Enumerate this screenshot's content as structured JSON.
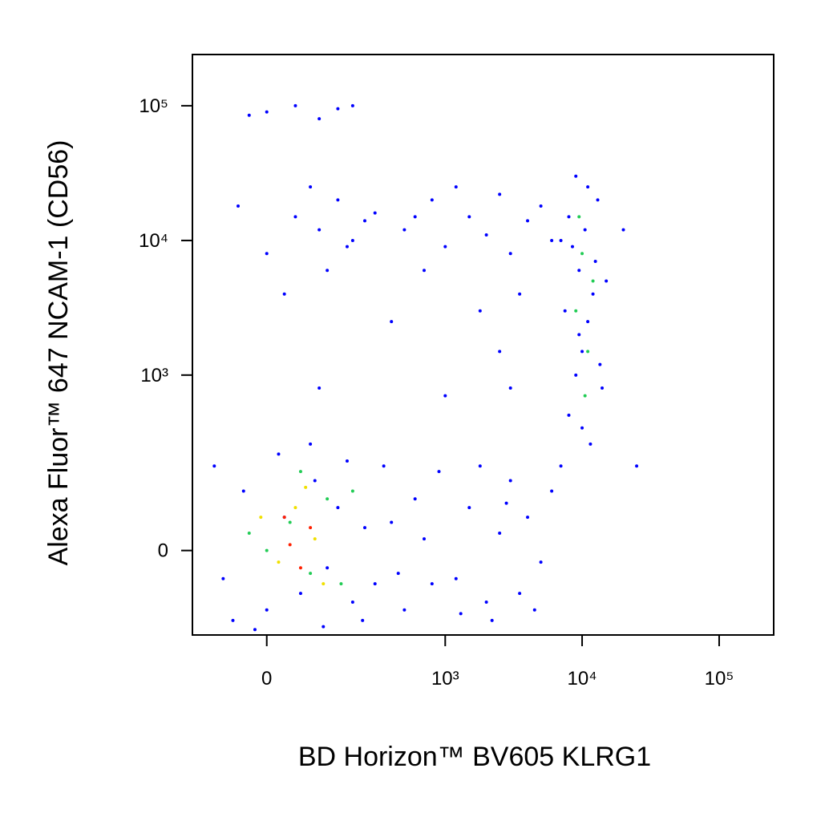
{
  "chart_data": {
    "type": "scatter",
    "xlabel": "BD Horizon™ BV605 KLRG1",
    "ylabel": "Alexa Fluor™ 647 NCAM-1 (CD56)",
    "xscale": "arcsinh",
    "yscale": "arcsinh",
    "xlim": [
      -160,
      250000
    ],
    "ylim": [
      -200,
      240000
    ],
    "xticks": [
      0,
      {
        "value": 1000,
        "label": "10³"
      },
      {
        "value": 10000,
        "label": "10⁴"
      },
      {
        "value": 100000,
        "label": "10⁵"
      }
    ],
    "yticks": [
      0,
      {
        "value": 1000,
        "label": "10³"
      },
      {
        "value": 10000,
        "label": "10⁴"
      },
      {
        "value": 100000,
        "label": "10⁵"
      }
    ],
    "series": [
      {
        "color": "#0000ff",
        "x": [
          -80,
          -40,
          0,
          30,
          60,
          90,
          120,
          150,
          200,
          250,
          -100,
          -60,
          20,
          80,
          180,
          300,
          400,
          500,
          600,
          350,
          -20,
          110,
          240,
          450,
          700,
          1200,
          1500,
          2000,
          2500,
          3000,
          3500,
          4000,
          5000,
          6000,
          1800,
          2200,
          2800,
          4500,
          800,
          900,
          1300,
          7000,
          8000,
          9000,
          10000,
          11000,
          12000,
          9500,
          8500,
          10500,
          13000,
          7500,
          14000,
          11500,
          9000,
          12500,
          8000,
          10000,
          15000,
          7000,
          11000,
          9500,
          13500,
          0,
          50,
          100,
          150,
          200,
          -50,
          120,
          250,
          80,
          30,
          180,
          300,
          500,
          800,
          1000,
          1500,
          2000,
          2500,
          3000,
          4000,
          5000,
          6000,
          700,
          1200,
          3500,
          1800,
          600,
          0,
          50,
          100,
          150,
          -30,
          200,
          100,
          400,
          2500,
          1000,
          3000,
          20000,
          25000
        ],
        "y": [
          -50,
          120,
          -120,
          60,
          -80,
          150,
          -30,
          80,
          -100,
          40,
          200,
          -150,
          250,
          300,
          220,
          -60,
          50,
          -120,
          100,
          200,
          -180,
          -170,
          -150,
          -40,
          20,
          -50,
          80,
          -100,
          30,
          150,
          -80,
          60,
          -20,
          120,
          200,
          -150,
          90,
          -120,
          -60,
          180,
          -130,
          200,
          500,
          1000,
          1500,
          2500,
          4000,
          6000,
          9000,
          12000,
          20000,
          3000,
          800,
          300,
          30000,
          7000,
          15000,
          400,
          5000,
          10000,
          25000,
          2000,
          1200,
          8000,
          15000,
          12000,
          20000,
          10000,
          18000,
          6000,
          14000,
          25000,
          4000,
          9000,
          16000,
          12000,
          20000,
          9000,
          15000,
          11000,
          22000,
          8000,
          14000,
          18000,
          10000,
          6000,
          25000,
          4000,
          3000,
          15000,
          90000,
          100000,
          80000,
          95000,
          85000,
          100000,
          800,
          2500,
          1500,
          700,
          800,
          12000,
          200
        ]
      },
      {
        "color": "#22cc55",
        "x": [
          0,
          40,
          80,
          120,
          -30,
          60,
          160,
          200,
          9000,
          10000,
          11000,
          9500,
          12000,
          10500
        ],
        "y": [
          0,
          50,
          -40,
          100,
          30,
          180,
          -60,
          120,
          3000,
          8000,
          1500,
          15000,
          5000,
          700
        ]
      },
      {
        "color": "#f0e000",
        "x": [
          20,
          50,
          90,
          110,
          -10,
          70
        ],
        "y": [
          -20,
          80,
          20,
          -60,
          60,
          130
        ]
      },
      {
        "color": "#ff2000",
        "x": [
          40,
          60,
          30,
          80
        ],
        "y": [
          10,
          -30,
          60,
          40
        ]
      }
    ]
  }
}
